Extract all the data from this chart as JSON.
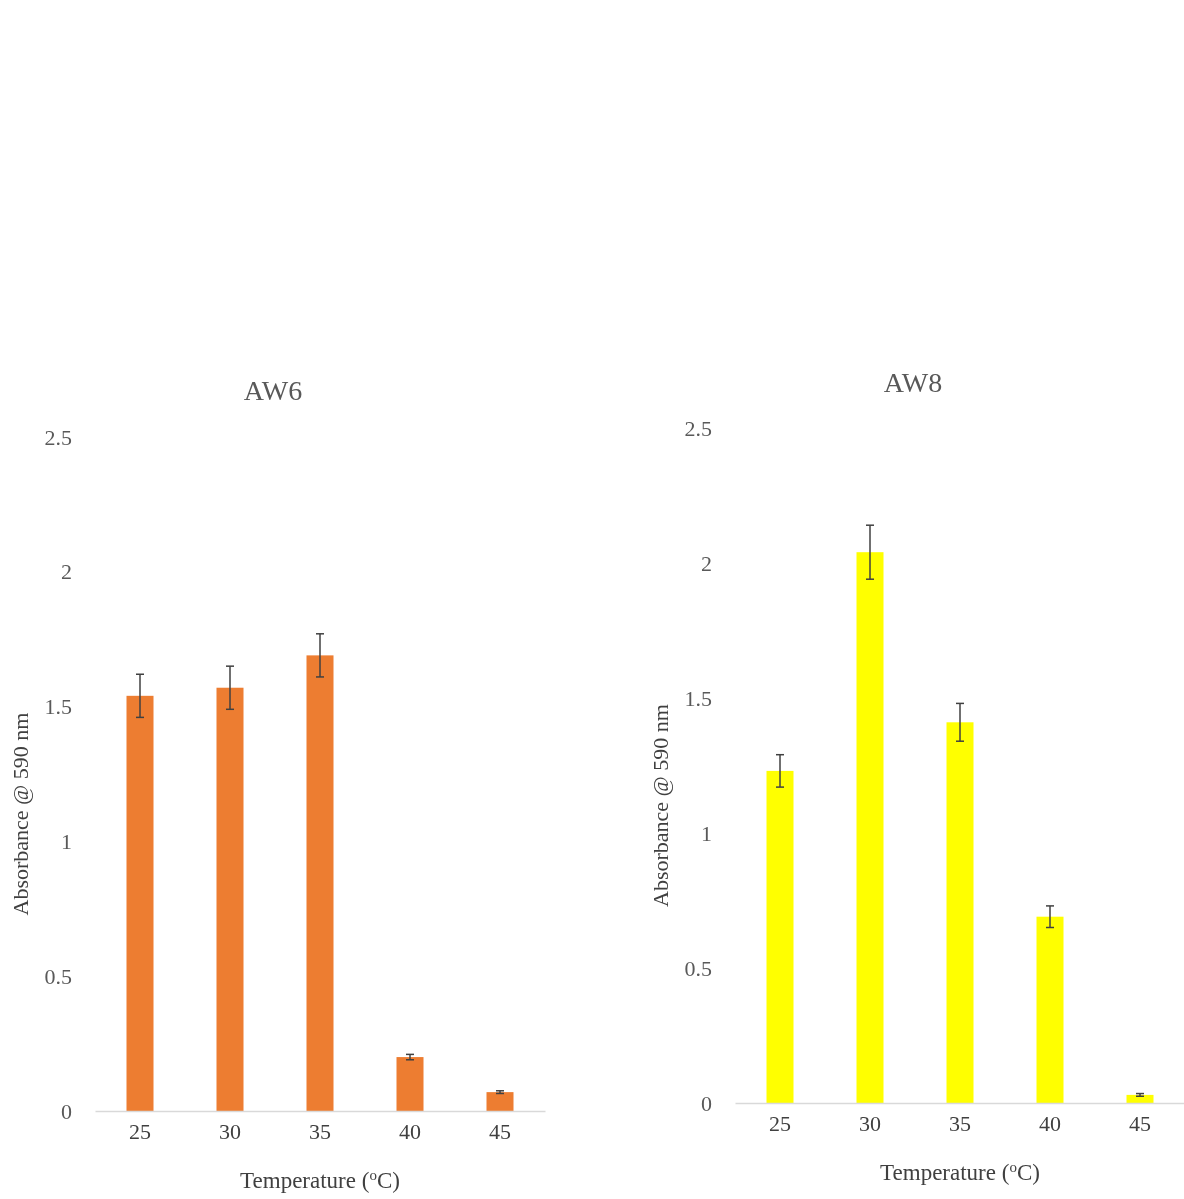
{
  "chart_data": [
    {
      "type": "bar",
      "title": "AW6",
      "xlabel": "Temperature ($^{o}$C)",
      "ylabel": "Absorbance @ 590 nm",
      "categories": [
        "25",
        "30",
        "35",
        "40",
        "45"
      ],
      "series": [
        {
          "color": "#ed7d31",
          "values": [
            1.54,
            1.57,
            1.69,
            0.2,
            0.07
          ],
          "errors": [
            0.08,
            0.08,
            0.08,
            0.01,
            0.005
          ]
        }
      ],
      "ylim": [
        0,
        2.5
      ],
      "yticks": [
        0,
        0.5,
        1,
        1.5,
        2,
        2.5
      ],
      "grid": false
    },
    {
      "type": "bar",
      "title": "AW8",
      "xlabel": "Temperature ($^{o}$C)",
      "ylabel": "Absorbance @ 590 nm",
      "categories": [
        "25",
        "30",
        "35",
        "40",
        "45"
      ],
      "series": [
        {
          "color": "#ffff00",
          "values": [
            1.23,
            2.04,
            1.41,
            0.69,
            0.03
          ],
          "errors": [
            0.06,
            0.1,
            0.07,
            0.04,
            0.005
          ]
        }
      ],
      "ylim": [
        0,
        2.5
      ],
      "yticks": [
        0,
        0.5,
        1,
        1.5,
        2,
        2.5
      ],
      "grid": false
    }
  ]
}
